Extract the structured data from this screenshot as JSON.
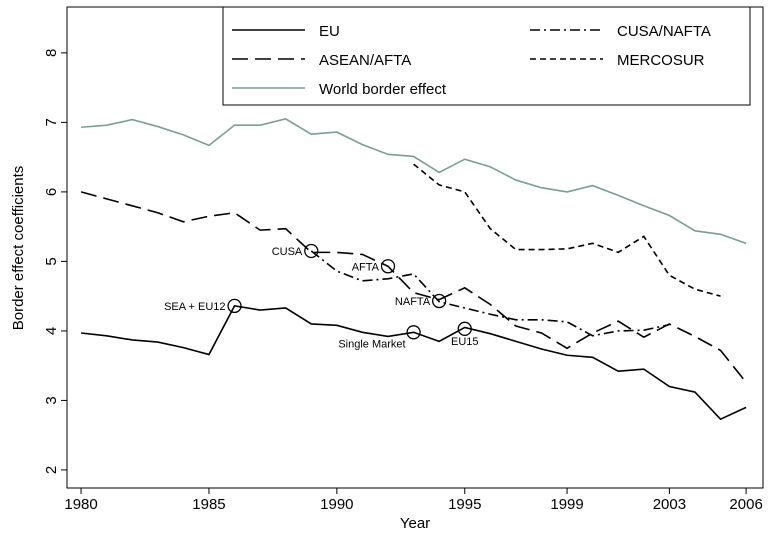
{
  "chart_data": {
    "type": "line",
    "x_label": "Year",
    "y_label": "Border effect coefficients",
    "x": [
      1980,
      1981,
      1982,
      1983,
      1984,
      1985,
      1986,
      1987,
      1988,
      1989,
      1990,
      1991,
      1992,
      1993,
      1994,
      1995,
      1996,
      1997,
      1998,
      1999,
      2000,
      2001,
      2002,
      2003,
      2004,
      2005,
      2006
    ],
    "xlim": [
      1979.45,
      2006.66
    ],
    "xticks": [
      1980,
      1985,
      1990,
      1995,
      1999,
      2003,
      2006
    ],
    "ylim": [
      1.74,
      8.66
    ],
    "yticks": [
      2,
      3,
      4,
      5,
      6,
      7,
      8
    ],
    "series": [
      {
        "name": "EU",
        "color": "#000000",
        "line_style": "solid",
        "values": [
          3.97,
          3.93,
          3.87,
          3.84,
          3.76,
          3.66,
          4.36,
          4.3,
          4.33,
          4.1,
          4.08,
          3.98,
          3.92,
          3.98,
          3.85,
          4.05,
          3.96,
          3.85,
          3.74,
          3.65,
          3.62,
          3.42,
          3.45,
          3.2,
          3.12,
          2.73,
          2.9
        ]
      },
      {
        "name": "CUSA/NAFTA",
        "color": "#000000",
        "line_style": "dashdot",
        "values": [
          null,
          null,
          null,
          null,
          null,
          null,
          null,
          null,
          null,
          5.15,
          4.86,
          4.72,
          4.75,
          4.82,
          4.42,
          4.33,
          4.24,
          4.16,
          4.16,
          4.13,
          3.93,
          4.0,
          4.01,
          4.09,
          null,
          null,
          null
        ]
      },
      {
        "name": "ASEAN/AFTA",
        "color": "#000000",
        "line_style": "longdash",
        "values": [
          6.0,
          5.9,
          5.8,
          5.7,
          5.57,
          5.65,
          5.7,
          5.45,
          5.47,
          5.13,
          5.13,
          5.1,
          4.93,
          4.55,
          4.45,
          4.62,
          4.38,
          4.07,
          3.97,
          3.75,
          3.97,
          4.14,
          3.91,
          4.1,
          3.92,
          3.72,
          3.26
        ]
      },
      {
        "name": "MERCOSUR",
        "color": "#000000",
        "line_style": "shortdash",
        "values": [
          null,
          null,
          null,
          null,
          null,
          null,
          null,
          null,
          null,
          null,
          null,
          null,
          null,
          6.4,
          6.1,
          6.0,
          5.47,
          5.17,
          5.17,
          5.18,
          5.26,
          5.13,
          5.36,
          4.8,
          4.6,
          4.5,
          null
        ]
      },
      {
        "name": "World border effect",
        "color": "#7a9e97",
        "line_style": "solid",
        "values": [
          6.93,
          6.96,
          7.04,
          6.94,
          6.82,
          6.67,
          6.96,
          6.96,
          7.05,
          6.83,
          6.86,
          6.68,
          6.54,
          6.51,
          6.28,
          6.47,
          6.36,
          6.17,
          6.06,
          6.0,
          6.09,
          5.95,
          5.8,
          5.66,
          5.44,
          5.39,
          5.26
        ]
      }
    ],
    "annotations": [
      {
        "text": "SEA + EU12",
        "x": 1986,
        "y": 4.36,
        "position": "left"
      },
      {
        "text": "CUSA",
        "x": 1989,
        "y": 5.15,
        "position": "left"
      },
      {
        "text": "AFTA",
        "x": 1992,
        "y": 4.93,
        "position": "left"
      },
      {
        "text": "NAFTA",
        "x": 1994,
        "y": 4.43,
        "position": "left"
      },
      {
        "text": "Single Market",
        "x": 1993,
        "y": 3.98,
        "position": "belowleft"
      },
      {
        "text": "EU15",
        "x": 1995,
        "y": 4.03,
        "position": "below"
      }
    ]
  }
}
